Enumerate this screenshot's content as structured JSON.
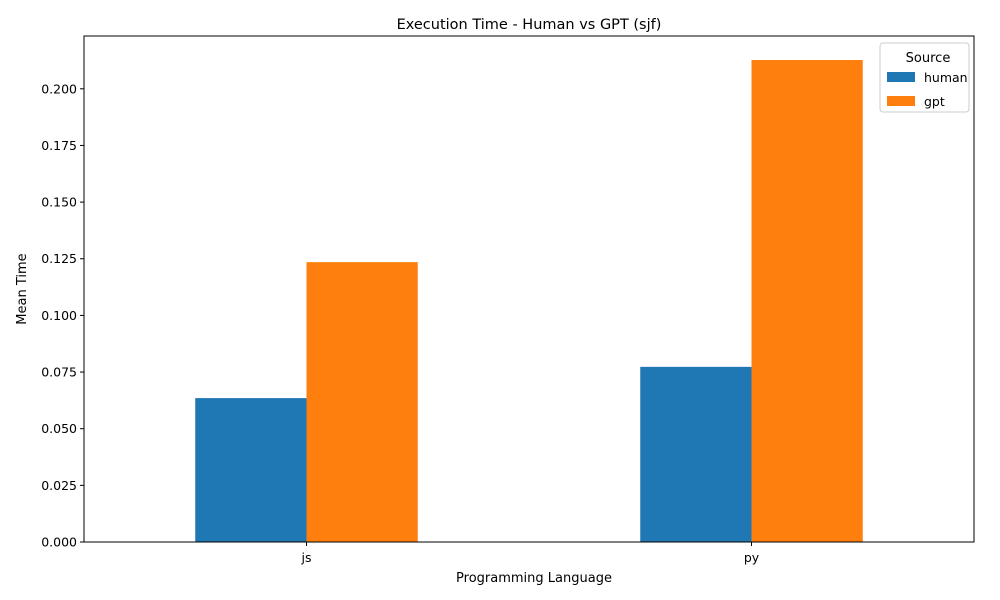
{
  "chart_data": {
    "type": "bar",
    "title": "Execution Time - Human vs GPT (sjf)",
    "xlabel": "Programming Language",
    "ylabel": "Mean Time",
    "categories": [
      "js",
      "py"
    ],
    "series": [
      {
        "name": "human",
        "color": "#1f77b4",
        "values": [
          0.0635,
          0.0773
        ]
      },
      {
        "name": "gpt",
        "color": "#ff7f0e",
        "values": [
          0.1235,
          0.2127
        ]
      }
    ],
    "ylim": [
      0,
      0.2233
    ],
    "yticks": [
      0.0,
      0.025,
      0.05,
      0.075,
      0.1,
      0.125,
      0.15,
      0.175,
      0.2
    ],
    "ytick_labels": [
      "0.000",
      "0.025",
      "0.050",
      "0.075",
      "0.100",
      "0.125",
      "0.150",
      "0.175",
      "0.200"
    ],
    "grid": false,
    "legend": {
      "title": "Source",
      "placement": "top-right"
    }
  }
}
